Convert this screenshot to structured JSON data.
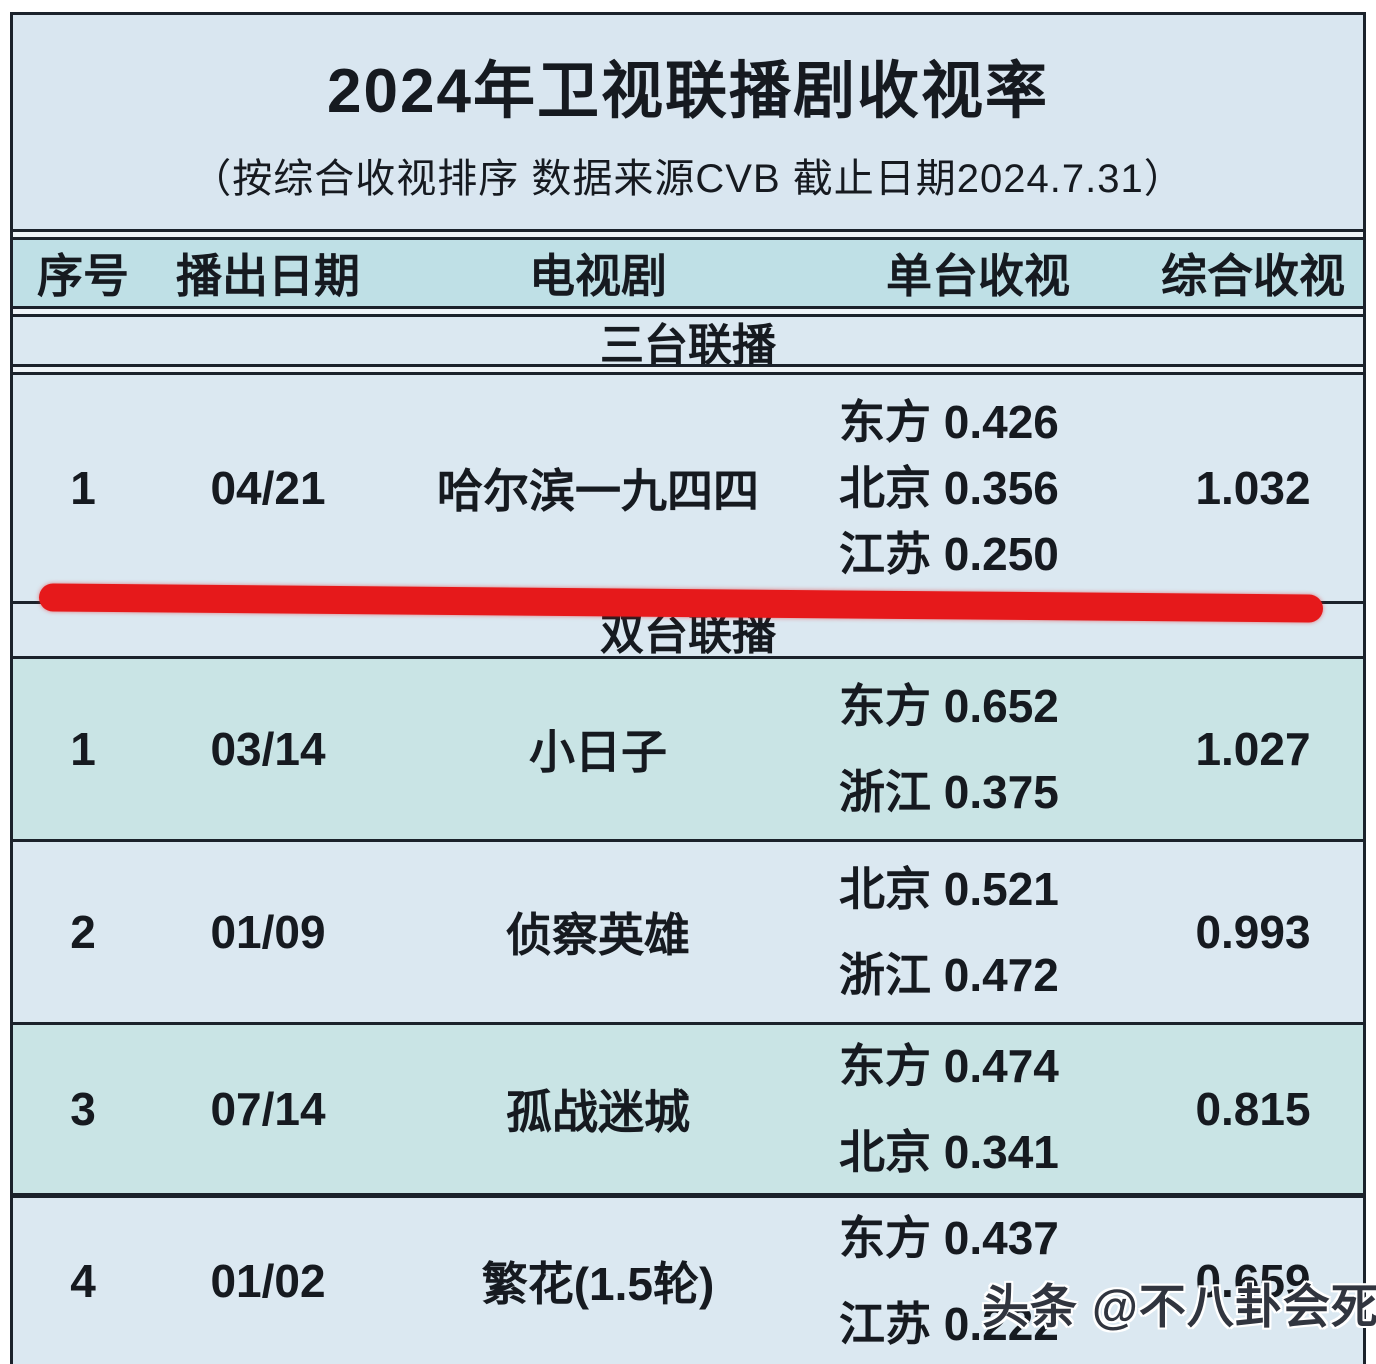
{
  "title": "2024年卫视联播剧收视率",
  "subtitle": "（按综合收视排序 数据来源CVB  截止日期2024.7.31）",
  "watermark": "头条 @不八卦会死星人",
  "colors": {
    "highlight_red": "#e6191b",
    "header_bg": "#bfe0e6",
    "teal_row_bg": "#c9e4e5",
    "light_bg": "#dbe8f1",
    "border": "#1b222b"
  },
  "chart_data": {
    "type": "table",
    "columns": [
      "序号",
      "播出日期",
      "电视剧",
      "单台收视",
      "综合收视"
    ],
    "sections": [
      {
        "label": "三台联播",
        "rows": [
          {
            "no": "1",
            "date": "04/21",
            "title": "哈尔滨一九四四",
            "channels": [
              "东方 0.426",
              "北京 0.356",
              "江苏 0.250"
            ],
            "total": "1.032",
            "highlighted": true
          }
        ]
      },
      {
        "label": "双台联播",
        "rows": [
          {
            "no": "1",
            "date": "03/14",
            "title": "小日子",
            "channels": [
              "东方 0.652",
              "浙江 0.375"
            ],
            "total": "1.027"
          },
          {
            "no": "2",
            "date": "01/09",
            "title": "侦察英雄",
            "channels": [
              "北京 0.521",
              "浙江 0.472"
            ],
            "total": "0.993"
          },
          {
            "no": "3",
            "date": "07/14",
            "title": "孤战迷城",
            "channels": [
              "东方 0.474",
              "北京 0.341"
            ],
            "total": "0.815"
          },
          {
            "no": "4",
            "date": "01/02",
            "title": "繁花(1.5轮)",
            "channels": [
              "东方 0.437",
              "江苏 0.222"
            ],
            "total": "0.659"
          }
        ]
      }
    ]
  }
}
